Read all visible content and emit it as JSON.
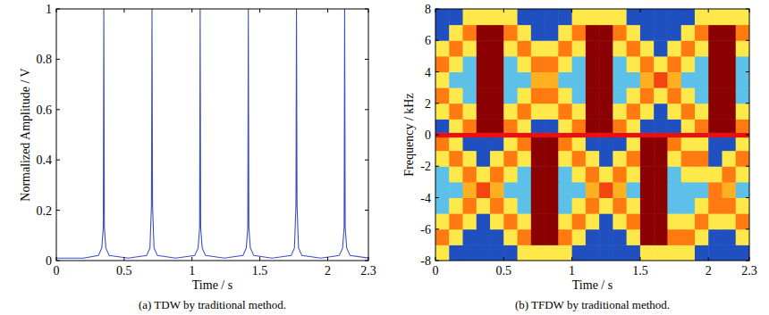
{
  "chart_data": [
    {
      "type": "line",
      "caption": "(a) TDW by traditional method.",
      "x_label": "Time / s",
      "y_label": "Normalized Amplitude / V",
      "xlim": [
        0,
        2.3
      ],
      "ylim": [
        0,
        1
      ],
      "xticks": [
        0,
        0.5,
        1,
        1.5,
        2,
        2.3
      ],
      "yticks": [
        0,
        0.2,
        0.4,
        0.6,
        0.8,
        1
      ],
      "x": [
        0,
        0.2,
        0.31,
        0.335,
        0.346,
        0.35,
        0.354,
        0.365,
        0.39,
        0.53,
        0.665,
        0.69,
        0.701,
        0.705,
        0.709,
        0.72,
        0.745,
        0.88,
        1.02,
        1.045,
        1.056,
        1.06,
        1.064,
        1.075,
        1.1,
        1.24,
        1.375,
        1.4,
        1.411,
        1.415,
        1.419,
        1.43,
        1.455,
        1.59,
        1.73,
        1.755,
        1.766,
        1.77,
        1.774,
        1.785,
        1.81,
        1.95,
        2.085,
        2.11,
        2.121,
        2.125,
        2.129,
        2.14,
        2.165,
        2.3
      ],
      "series": [
        {
          "color": "#3b4fc4",
          "values": [
            0.01,
            0.01,
            0.02,
            0.05,
            0.13,
            1,
            0.13,
            0.05,
            0.02,
            0.01,
            0.02,
            0.05,
            0.22,
            1,
            0.22,
            0.05,
            0.02,
            0.01,
            0.02,
            0.05,
            0.13,
            1,
            0.13,
            0.05,
            0.02,
            0.01,
            0.02,
            0.05,
            0.13,
            1,
            0.13,
            0.05,
            0.02,
            0.01,
            0.02,
            0.05,
            0.22,
            1,
            0.22,
            0.05,
            0.02,
            0.01,
            0.02,
            0.05,
            0.13,
            1,
            0.13,
            0.05,
            0.02,
            0.01
          ]
        }
      ]
    },
    {
      "type": "heatmap",
      "caption": "(b) TFDW by traditional method.",
      "x_label": "Time / s",
      "y_label": "Frequency / kHz",
      "xlim": [
        0,
        2.3
      ],
      "ylim": [
        -8,
        8
      ],
      "xticks": [
        0,
        0.5,
        1,
        1.5,
        2,
        2.3
      ],
      "yticks": [
        -8,
        -6,
        -4,
        -2,
        0,
        2,
        4,
        6,
        8
      ],
      "zlim": [
        0,
        1
      ],
      "x_edges": [
        0,
        0.1,
        0.2,
        0.3,
        0.4,
        0.5,
        0.6,
        0.7,
        0.8,
        0.9,
        1,
        1.1,
        1.2,
        1.3,
        1.4,
        1.5,
        1.6,
        1.7,
        1.8,
        1.9,
        2,
        2.1,
        2.2,
        2.3
      ],
      "y_edges": [
        -8,
        -7,
        -6,
        -5,
        -4,
        -3,
        -2,
        -1,
        -0.15,
        0.15,
        1,
        2,
        3,
        4,
        5,
        6,
        7,
        8
      ],
      "cells": [
        [
          0.55,
          0.2,
          0.2,
          0.2,
          0.2,
          0.2,
          0.55,
          0.55,
          0.55,
          0.55,
          0.2,
          0.2,
          0.2,
          0.2,
          0.2,
          0.55,
          0.55,
          0.55,
          0.55,
          0.2,
          0.2,
          0.2,
          0.2
        ],
        [
          0.8,
          0.55,
          0.2,
          0.2,
          0.2,
          0.55,
          0.8,
          1,
          1,
          0.8,
          0.55,
          0.2,
          0.2,
          0.2,
          0.55,
          1,
          1,
          0.8,
          0.8,
          0.55,
          0.2,
          0.2,
          0.55
        ],
        [
          0.55,
          0.8,
          0.55,
          0.2,
          0.55,
          0.8,
          0.55,
          1,
          1,
          0.55,
          0.8,
          0.55,
          0.2,
          0.55,
          0.8,
          1,
          1,
          0.55,
          0.55,
          0.8,
          0.55,
          0.55,
          0.8
        ],
        [
          0.35,
          0.55,
          0.8,
          0.55,
          0.8,
          0.55,
          0.35,
          1,
          1,
          0.35,
          0.55,
          0.8,
          0.55,
          0.8,
          0.55,
          1,
          1,
          0.35,
          0.35,
          0.55,
          0.8,
          0.8,
          0.55
        ],
        [
          0.35,
          0.35,
          0.7,
          0.85,
          0.7,
          0.35,
          0.35,
          1,
          1,
          0.35,
          0.35,
          0.7,
          0.85,
          0.7,
          0.35,
          1,
          1,
          0.35,
          0.35,
          0.35,
          0.8,
          0.7,
          0.35
        ],
        [
          0.35,
          0.55,
          0.8,
          0.55,
          0.8,
          0.55,
          0.35,
          1,
          1,
          0.35,
          0.55,
          0.8,
          0.55,
          0.8,
          0.55,
          1,
          1,
          0.35,
          0.55,
          0.55,
          0.55,
          0.8,
          0.55
        ],
        [
          0.55,
          0.8,
          0.55,
          0.2,
          0.55,
          0.8,
          0.55,
          1,
          1,
          0.55,
          0.8,
          0.55,
          0.2,
          0.55,
          0.8,
          1,
          1,
          0.55,
          0.8,
          0.8,
          0.2,
          0.55,
          0.8
        ],
        [
          0.8,
          0.55,
          0.2,
          0.2,
          0.2,
          0.55,
          0.8,
          1,
          1,
          0.8,
          0.55,
          0.2,
          0.2,
          0.2,
          0.55,
          1,
          1,
          0.8,
          0.55,
          0.55,
          0.2,
          0.2,
          0.55
        ],
        [
          0.9,
          0.9,
          0.9,
          0.9,
          0.9,
          0.9,
          0.9,
          0.9,
          0.9,
          0.9,
          0.9,
          0.9,
          0.9,
          0.9,
          0.9,
          0.9,
          0.9,
          0.9,
          0.9,
          0.9,
          0.9,
          0.9,
          0.9
        ],
        [
          0.2,
          0.55,
          0.8,
          1,
          1,
          0.8,
          0.55,
          0.2,
          0.2,
          0.55,
          0.8,
          1,
          1,
          0.8,
          0.55,
          0.2,
          0.2,
          0.2,
          0.55,
          0.8,
          1,
          1,
          0.8
        ],
        [
          0.55,
          0.8,
          0.55,
          1,
          1,
          0.55,
          0.8,
          0.55,
          0.55,
          0.8,
          0.55,
          1,
          1,
          0.55,
          0.8,
          0.55,
          0.2,
          0.55,
          0.8,
          0.55,
          1,
          1,
          0.55
        ],
        [
          0.8,
          0.55,
          0.35,
          1,
          1,
          0.35,
          0.55,
          0.8,
          0.8,
          0.55,
          0.35,
          1,
          1,
          0.35,
          0.55,
          0.8,
          0.55,
          0.8,
          0.55,
          0.35,
          1,
          1,
          0.35
        ],
        [
          0.55,
          0.35,
          0.35,
          1,
          1,
          0.35,
          0.35,
          0.7,
          0.7,
          0.35,
          0.35,
          1,
          1,
          0.35,
          0.35,
          0.7,
          0.85,
          0.7,
          0.35,
          0.35,
          1,
          1,
          0.35
        ],
        [
          0.8,
          0.55,
          0.35,
          1,
          1,
          0.35,
          0.55,
          0.8,
          0.8,
          0.55,
          0.35,
          1,
          1,
          0.35,
          0.55,
          0.8,
          0.55,
          0.8,
          0.55,
          0.35,
          1,
          1,
          0.35
        ],
        [
          0.55,
          0.8,
          0.55,
          1,
          1,
          0.55,
          0.8,
          0.55,
          0.55,
          0.8,
          0.55,
          1,
          1,
          0.55,
          0.8,
          0.55,
          0.2,
          0.55,
          0.8,
          0.55,
          1,
          1,
          0.55
        ],
        [
          0.2,
          0.55,
          0.8,
          1,
          1,
          0.8,
          0.55,
          0.2,
          0.2,
          0.55,
          0.8,
          1,
          1,
          0.8,
          0.55,
          0.2,
          0.2,
          0.2,
          0.55,
          0.8,
          1,
          1,
          0.8
        ],
        [
          0.2,
          0.2,
          0.55,
          0.55,
          0.55,
          0.55,
          0.2,
          0.2,
          0.2,
          0.2,
          0.55,
          0.55,
          0.55,
          0.55,
          0.2,
          0.2,
          0.2,
          0.2,
          0.2,
          0.55,
          0.55,
          0.55,
          0.55
        ]
      ]
    }
  ]
}
